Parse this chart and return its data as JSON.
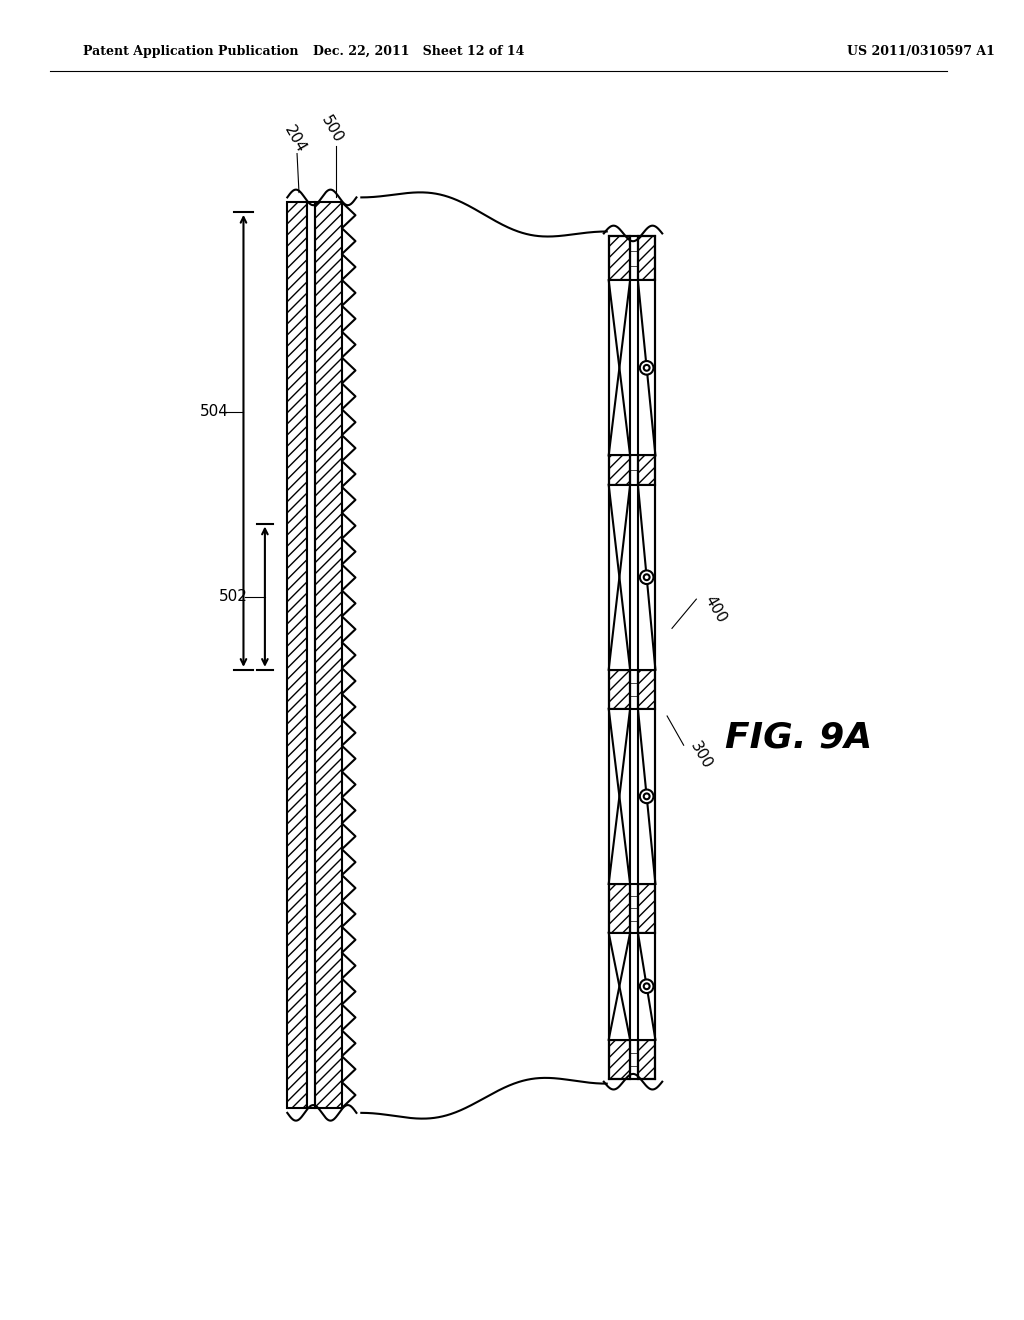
{
  "title": "FIG. 9A",
  "patent_header_left": "Patent Application Publication",
  "patent_header_mid": "Dec. 22, 2011   Sheet 12 of 14",
  "patent_header_right": "US 2011/0310597 A1",
  "bg_color": "#ffffff",
  "line_color": "#000000",
  "hatch_color": "#000000",
  "label_204": "204",
  "label_500": "500",
  "label_504": "504",
  "label_502": "502",
  "label_400": "400",
  "label_300": "300",
  "fig_label": "FIG. 9A"
}
